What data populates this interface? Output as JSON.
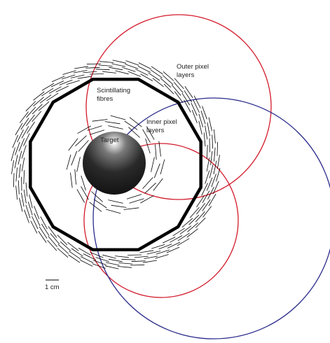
{
  "labels": {
    "outer_pixel_line1": "Outer pixel",
    "outer_pixel_line2": "layers",
    "scint_line1": "Scintillating",
    "scint_line2": "fibres",
    "inner_pixel_line1": "Inner pixel",
    "inner_pixel_line2": "layers",
    "target": "Target",
    "scale": "1 cm"
  },
  "colors": {
    "background": "#ffffff",
    "detector_lines": "#000000",
    "track_red": "#d21a2a",
    "track_blue": "#2a2a8c"
  }
}
